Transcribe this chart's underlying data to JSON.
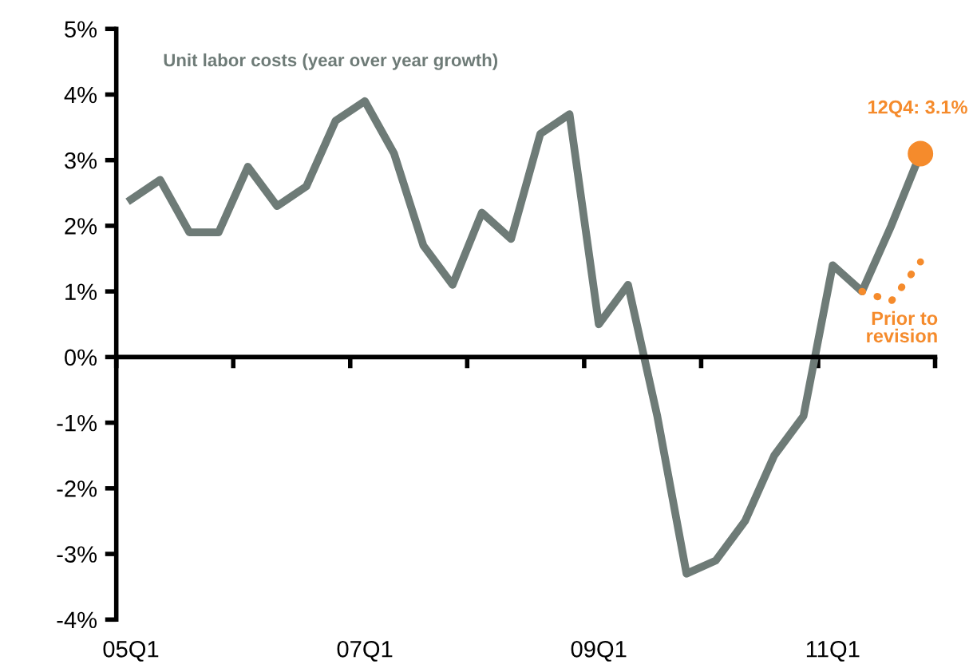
{
  "chart_data": {
    "type": "line",
    "categories": [
      "05Q1",
      null,
      null,
      null,
      null,
      null,
      null,
      null,
      "07Q1",
      null,
      null,
      null,
      null,
      null,
      null,
      null,
      "09Q1",
      null,
      null,
      null,
      null,
      null,
      null,
      null,
      "11Q1",
      null,
      null,
      null
    ],
    "series": [
      {
        "name": "Unit labor costs (year over year growth)",
        "color": "#6e7b77",
        "line_style": "solid",
        "values": [
          2.4,
          2.7,
          1.9,
          1.9,
          2.9,
          2.3,
          2.6,
          3.6,
          3.9,
          3.1,
          1.7,
          1.1,
          2.2,
          1.8,
          3.4,
          3.7,
          0.5,
          1.1,
          -0.9,
          -3.3,
          -3.1,
          -2.5,
          -1.5,
          -0.9,
          1.4,
          1.0,
          2.0,
          3.1
        ]
      },
      {
        "name": "Prior to revision",
        "color": "#f58b2c",
        "line_style": "dotted",
        "values": [
          null,
          null,
          null,
          null,
          null,
          null,
          null,
          null,
          null,
          null,
          null,
          null,
          null,
          null,
          null,
          null,
          null,
          null,
          null,
          null,
          null,
          null,
          null,
          null,
          null,
          1.0,
          0.85,
          1.45
        ]
      },
      {
        "name": "12Q4: 3.1%",
        "type": "scatter",
        "color": "#f58b2c",
        "marker": "circle",
        "values": [
          null,
          null,
          null,
          null,
          null,
          null,
          null,
          null,
          null,
          null,
          null,
          null,
          null,
          null,
          null,
          null,
          null,
          null,
          null,
          null,
          null,
          null,
          null,
          null,
          null,
          null,
          null,
          3.1
        ]
      }
    ],
    "ylim": [
      -4,
      5
    ],
    "yticks": [
      {
        "value": -4,
        "label": "-4%"
      },
      {
        "value": -3,
        "label": "-3%"
      },
      {
        "value": -2,
        "label": "-2%"
      },
      {
        "value": -1,
        "label": "-1%"
      },
      {
        "value": 0,
        "label": "0%"
      },
      {
        "value": 1,
        "label": "1%"
      },
      {
        "value": 2,
        "label": "2%"
      },
      {
        "value": 3,
        "label": "3%"
      },
      {
        "value": 4,
        "label": "4%"
      },
      {
        "value": 5,
        "label": "5%"
      }
    ],
    "legend": false
  }
}
